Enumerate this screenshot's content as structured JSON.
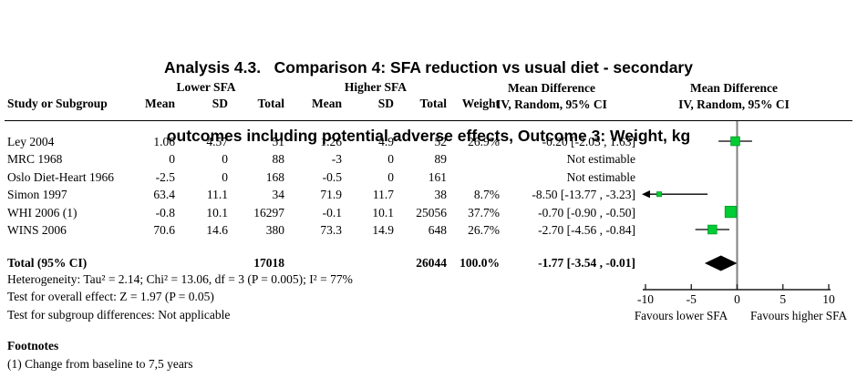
{
  "title": {
    "line1": "Analysis 4.3.   Comparison 4: SFA reduction vs usual diet - secondary",
    "line2": "outcomes including potential adverse effects, Outcome 3: Weight, kg"
  },
  "table": {
    "group_headers": {
      "lower": "Lower SFA",
      "higher": "Higher SFA",
      "md1": "Mean Difference",
      "md2": "Mean Difference"
    },
    "col_headers": {
      "study": "Study or Subgroup",
      "mean": "Mean",
      "sd": "SD",
      "total": "Total",
      "weight": "Weight",
      "ci": "IV, Random, 95% CI"
    },
    "rows": [
      {
        "study": "Ley 2004",
        "mean1": "1.06",
        "sd1": "4.57",
        "total1": "51",
        "mean2": "1.26",
        "sd2": "4.9",
        "total2": "52",
        "weight": "26.9%",
        "ci": "-0.20 [-2.03 , 1.63]"
      },
      {
        "study": "MRC 1968",
        "mean1": "0",
        "sd1": "0",
        "total1": "88",
        "mean2": "-3",
        "sd2": "0",
        "total2": "89",
        "weight": "",
        "ci": "Not estimable"
      },
      {
        "study": "Oslo Diet-Heart 1966",
        "mean1": "-2.5",
        "sd1": "0",
        "total1": "168",
        "mean2": "-0.5",
        "sd2": "0",
        "total2": "161",
        "weight": "",
        "ci": "Not estimable"
      },
      {
        "study": "Simon 1997",
        "mean1": "63.4",
        "sd1": "11.1",
        "total1": "34",
        "mean2": "71.9",
        "sd2": "11.7",
        "total2": "38",
        "weight": "8.7%",
        "ci": "-8.50 [-13.77 , -3.23]"
      },
      {
        "study": "WHI 2006 (1)",
        "mean1": "-0.8",
        "sd1": "10.1",
        "total1": "16297",
        "mean2": "-0.1",
        "sd2": "10.1",
        "total2": "25056",
        "weight": "37.7%",
        "ci": "-0.70 [-0.90 , -0.50]"
      },
      {
        "study": "WINS 2006",
        "mean1": "70.6",
        "sd1": "14.6",
        "total1": "380",
        "mean2": "73.3",
        "sd2": "14.9",
        "total2": "648",
        "weight": "26.7%",
        "ci": "-2.70 [-4.56 , -0.84]"
      }
    ],
    "total_row": {
      "label": "Total (95% CI)",
      "total1": "17018",
      "total2": "26044",
      "weight": "100.0%",
      "ci": "-1.77 [-3.54 , -0.01]"
    },
    "stats": [
      "Heterogeneity: Tau² = 2.14; Chi² = 13.06, df = 3 (P = 0.005); I² = 77%",
      "Test for overall effect: Z = 1.97 (P = 0.05)",
      "Test for subgroup differences: Not applicable"
    ]
  },
  "footnotes": {
    "heading": "Footnotes",
    "items": [
      "(1) Change from baseline to 7,5 years"
    ]
  },
  "chart_data": {
    "type": "forest",
    "effect_measure": "Mean Difference, IV, Random, 95% CI",
    "xlim": [
      -10,
      10
    ],
    "axis_ticks": [
      -10,
      -5,
      0,
      5,
      10
    ],
    "xlabel_left": "Favours lower SFA",
    "xlabel_right": "Favours higher SFA",
    "marker_color": "#00CC33",
    "marker_edge_color": "#009926",
    "zero_line_color": "#808080",
    "studies": [
      {
        "name": "Ley 2004",
        "md": -0.2,
        "ci_low": -2.03,
        "ci_high": 1.63,
        "weight": 26.9
      },
      {
        "name": "MRC 1968",
        "md": null,
        "ci_low": null,
        "ci_high": null,
        "weight": null
      },
      {
        "name": "Oslo Diet-Heart 1966",
        "md": null,
        "ci_low": null,
        "ci_high": null,
        "weight": null
      },
      {
        "name": "Simon 1997",
        "md": -8.5,
        "ci_low": -13.77,
        "ci_high": -3.23,
        "weight": 8.7
      },
      {
        "name": "WHI 2006 (1)",
        "md": -0.7,
        "ci_low": -0.9,
        "ci_high": -0.5,
        "weight": 37.7
      },
      {
        "name": "WINS 2006",
        "md": -2.7,
        "ci_low": -4.56,
        "ci_high": -0.84,
        "weight": 26.7
      }
    ],
    "total": {
      "md": -1.77,
      "ci_low": -3.54,
      "ci_high": -0.01
    }
  }
}
